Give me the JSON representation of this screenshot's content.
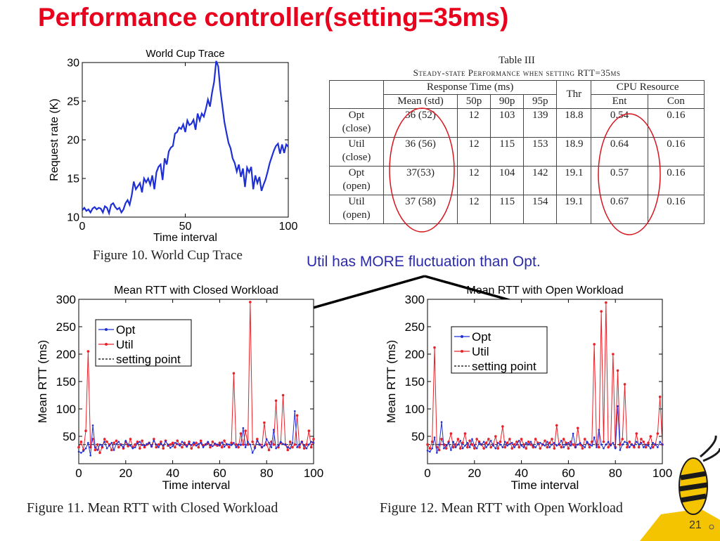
{
  "slide": {
    "title": "Performance controller(setting=35ms)",
    "note": "Util has MORE fluctuation than Opt.",
    "page_number": "21"
  },
  "captions": {
    "fig10": "Figure 10.   World Cup Trace",
    "fig11": "Figure 11.   Mean RTT with Closed Workload",
    "fig12": "Figure 12.   Mean RTT with Open Workload"
  },
  "table": {
    "title": "Table III",
    "subtitle": "Steady-state Performance when setting RTT=35ms",
    "h_response": "Response Time (ms)",
    "h_thr": "Thr",
    "h_cpu": "CPU Resource",
    "sub_headers": [
      "Mean (std)",
      "50p",
      "90p",
      "95p",
      "Ent",
      "Con"
    ],
    "rows": [
      {
        "label1": "Opt",
        "label2": "(close)",
        "mean": "36 (52)",
        "p50": "12",
        "p90": "103",
        "p95": "139",
        "thr": "18.8",
        "ent": "0.54",
        "con": "0.16"
      },
      {
        "label1": "Util",
        "label2": "(close)",
        "mean": "36 (56)",
        "p50": "12",
        "p90": "115",
        "p95": "153",
        "thr": "18.9",
        "ent": "0.64",
        "con": "0.16"
      },
      {
        "label1": "Opt",
        "label2": "(open)",
        "mean": "37(53)",
        "p50": "12",
        "p90": "104",
        "p95": "142",
        "thr": "19.1",
        "ent": "0.57",
        "con": "0.16"
      },
      {
        "label1": "Util",
        "label2": "(open)",
        "mean": "37 (58)",
        "p50": "12",
        "p90": "115",
        "p95": "154",
        "thr": "19.1",
        "ent": "0.67",
        "con": "0.16"
      }
    ]
  },
  "colors": {
    "title": "#e8001c",
    "opt": "#1f2fd6",
    "util": "#e8222a",
    "note": "#2a2aa8"
  },
  "chart_data": [
    {
      "id": "worldcup",
      "type": "line",
      "title": "World Cup Trace",
      "xlabel": "Time interval",
      "ylabel": "Request rate (K)",
      "xlim": [
        0,
        100
      ],
      "ylim": [
        10,
        30
      ],
      "xticks": [
        0,
        50,
        100
      ],
      "yticks": [
        10,
        15,
        20,
        25,
        30
      ],
      "x": [
        0,
        1,
        2,
        3,
        4,
        5,
        6,
        7,
        8,
        9,
        10,
        11,
        12,
        13,
        14,
        15,
        16,
        17,
        18,
        19,
        20,
        21,
        22,
        23,
        24,
        25,
        26,
        27,
        28,
        29,
        30,
        31,
        32,
        33,
        34,
        35,
        36,
        37,
        38,
        39,
        40,
        41,
        42,
        43,
        44,
        45,
        46,
        47,
        48,
        49,
        50,
        51,
        52,
        53,
        54,
        55,
        56,
        57,
        58,
        59,
        60,
        61,
        62,
        63,
        64,
        65,
        66,
        67,
        68,
        69,
        70,
        71,
        72,
        73,
        74,
        75,
        76,
        77,
        78,
        79,
        80,
        81,
        82,
        83,
        84,
        85,
        86,
        87,
        88,
        89,
        90,
        91,
        92,
        93,
        94,
        95,
        96,
        97,
        98,
        99,
        100
      ],
      "series": [
        {
          "name": "Request rate",
          "values": [
            10.9,
            11.2,
            10.8,
            11,
            10.6,
            11.1,
            11.3,
            11,
            11.2,
            11.1,
            10.6,
            11.4,
            11.2,
            10.5,
            11.6,
            11.8,
            11.3,
            11,
            11.2,
            10.6,
            11,
            11.8,
            12.2,
            11.6,
            12.8,
            14.6,
            13.6,
            14,
            14.4,
            13.2,
            15,
            14.5,
            15,
            14.2,
            15.4,
            13.6,
            15.8,
            16.5,
            16.8,
            14.8,
            17.6,
            16.8,
            18.5,
            19,
            19.2,
            20.8,
            21,
            21.6,
            21.4,
            22,
            21,
            22.5,
            21.9,
            22.1,
            22.6,
            21.3,
            23.4,
            22.5,
            23.4,
            23,
            24,
            25.2,
            24.3,
            26.1,
            27.5,
            30.2,
            29.5,
            26.5,
            24.4,
            22.3,
            20.9,
            19.6,
            18.9,
            17.6,
            17,
            15.9,
            16.8,
            15.2,
            16.3,
            13.9,
            16.4,
            15.8,
            16.5,
            13.6,
            15.4,
            14.4,
            15.2,
            13.4,
            14.2,
            14.9,
            15.9,
            17,
            17.8,
            18.6,
            19.2,
            19.5,
            18.2,
            19.4,
            18.3,
            19.4,
            19.1
          ]
        }
      ]
    },
    {
      "id": "closed",
      "type": "line",
      "title": "Mean RTT with Closed Workload",
      "xlabel": "Time interval",
      "ylabel": "Mean RTT (ms)",
      "xlim": [
        0,
        100
      ],
      "ylim": [
        0,
        300
      ],
      "xticks": [
        0,
        20,
        40,
        60,
        80,
        100
      ],
      "yticks": [
        50,
        100,
        150,
        200,
        250,
        300
      ],
      "legend": [
        "Opt",
        "Util",
        "setting point"
      ],
      "setting_point": 35,
      "x": [
        0,
        1,
        2,
        3,
        4,
        5,
        6,
        7,
        8,
        9,
        10,
        11,
        12,
        13,
        14,
        15,
        16,
        17,
        18,
        19,
        20,
        21,
        22,
        23,
        24,
        25,
        26,
        27,
        28,
        29,
        30,
        31,
        32,
        33,
        34,
        35,
        36,
        37,
        38,
        39,
        40,
        41,
        42,
        43,
        44,
        45,
        46,
        47,
        48,
        49,
        50,
        51,
        52,
        53,
        54,
        55,
        56,
        57,
        58,
        59,
        60,
        61,
        62,
        63,
        64,
        65,
        66,
        67,
        68,
        69,
        70,
        71,
        72,
        73,
        74,
        75,
        76,
        77,
        78,
        79,
        80,
        81,
        82,
        83,
        84,
        85,
        86,
        87,
        88,
        89,
        90,
        91,
        92,
        93,
        94,
        95,
        96,
        97,
        98,
        99,
        100
      ],
      "series": [
        {
          "name": "Opt",
          "values": [
            22,
            20,
            23,
            28,
            38,
            15,
            70,
            30,
            25,
            35,
            32,
            40,
            28,
            33,
            38,
            25,
            36,
            40,
            34,
            30,
            42,
            35,
            33,
            28,
            30,
            37,
            40,
            34,
            33,
            36,
            38,
            31,
            42,
            35,
            30,
            37,
            33,
            41,
            35,
            29,
            32,
            38,
            36,
            33,
            40,
            35,
            31,
            37,
            34,
            39,
            33,
            36,
            38,
            30,
            35,
            40,
            34,
            32,
            37,
            35,
            33,
            39,
            31,
            36,
            35,
            34,
            38,
            30,
            35,
            34,
            65,
            30,
            40,
            35,
            20,
            28,
            42,
            35,
            30,
            33,
            45,
            38,
            30,
            62,
            28,
            33,
            40,
            36,
            35,
            30,
            28,
            38,
            96,
            30,
            35,
            40,
            33,
            28,
            35,
            40,
            38
          ]
        },
        {
          "name": "Util",
          "values": [
            30,
            40,
            25,
            60,
            205,
            30,
            45,
            25,
            35,
            20,
            30,
            45,
            40,
            35,
            25,
            38,
            42,
            30,
            35,
            28,
            40,
            32,
            45,
            30,
            35,
            40,
            28,
            42,
            30,
            35,
            38,
            32,
            45,
            30,
            35,
            40,
            28,
            42,
            33,
            35,
            38,
            30,
            42,
            35,
            30,
            38,
            33,
            40,
            28,
            35,
            38,
            30,
            42,
            33,
            35,
            38,
            30,
            40,
            35,
            33,
            38,
            30,
            42,
            35,
            30,
            38,
            165,
            35,
            30,
            55,
            35,
            60,
            35,
            295,
            40,
            30,
            45,
            35,
            30,
            75,
            35,
            25,
            40,
            35,
            115,
            30,
            38,
            125,
            35,
            25,
            40,
            30,
            35,
            88,
            30,
            40,
            28,
            35,
            60,
            30,
            45
          ]
        }
      ]
    },
    {
      "id": "open",
      "type": "line",
      "title": "Mean RTT with Open Workload",
      "xlabel": "Time interval",
      "ylabel": "Mean RTT (ms)",
      "xlim": [
        0,
        100
      ],
      "ylim": [
        0,
        300
      ],
      "xticks": [
        0,
        20,
        40,
        60,
        80,
        100
      ],
      "yticks": [
        50,
        100,
        150,
        200,
        250,
        300
      ],
      "legend": [
        "Opt",
        "Util",
        "setting point"
      ],
      "setting_point": 35,
      "x": [
        0,
        1,
        2,
        3,
        4,
        5,
        6,
        7,
        8,
        9,
        10,
        11,
        12,
        13,
        14,
        15,
        16,
        17,
        18,
        19,
        20,
        21,
        22,
        23,
        24,
        25,
        26,
        27,
        28,
        29,
        30,
        31,
        32,
        33,
        34,
        35,
        36,
        37,
        38,
        39,
        40,
        41,
        42,
        43,
        44,
        45,
        46,
        47,
        48,
        49,
        50,
        51,
        52,
        53,
        54,
        55,
        56,
        57,
        58,
        59,
        60,
        61,
        62,
        63,
        64,
        65,
        66,
        67,
        68,
        69,
        70,
        71,
        72,
        73,
        74,
        75,
        76,
        77,
        78,
        79,
        80,
        81,
        82,
        83,
        84,
        85,
        86,
        87,
        88,
        89,
        90,
        91,
        92,
        93,
        94,
        95,
        96,
        97,
        98,
        99,
        100
      ],
      "series": [
        {
          "name": "Opt",
          "values": [
            24,
            22,
            28,
            48,
            20,
            35,
            76,
            28,
            33,
            38,
            25,
            40,
            30,
            35,
            42,
            28,
            33,
            38,
            30,
            45,
            33,
            28,
            38,
            35,
            40,
            30,
            35,
            42,
            33,
            28,
            38,
            35,
            30,
            40,
            33,
            36,
            38,
            30,
            35,
            42,
            33,
            30,
            38,
            35,
            40,
            33,
            30,
            36,
            38,
            35,
            33,
            40,
            30,
            35,
            38,
            33,
            36,
            42,
            30,
            35,
            38,
            33,
            55,
            30,
            35,
            38,
            33,
            30,
            40,
            35,
            33,
            48,
            30,
            62,
            35,
            28,
            35,
            40,
            33,
            38,
            28,
            105,
            25,
            35,
            40,
            38,
            30,
            35,
            33,
            40,
            35,
            38,
            30,
            35,
            33,
            28,
            38,
            35,
            30,
            40,
            35
          ]
        },
        {
          "name": "Util",
          "values": [
            35,
            28,
            40,
            212,
            30,
            25,
            45,
            35,
            28,
            40,
            55,
            30,
            35,
            45,
            28,
            38,
            55,
            30,
            42,
            35,
            28,
            45,
            40,
            35,
            28,
            38,
            45,
            30,
            35,
            50,
            28,
            40,
            68,
            30,
            38,
            45,
            28,
            35,
            40,
            30,
            45,
            35,
            28,
            40,
            35,
            30,
            45,
            38,
            28,
            35,
            42,
            30,
            38,
            45,
            28,
            70,
            35,
            30,
            45,
            38,
            28,
            40,
            35,
            30,
            65,
            35,
            28,
            45,
            38,
            30,
            40,
            218,
            35,
            30,
            278,
            40,
            294,
            30,
            35,
            200,
            30,
            170,
            35,
            45,
            145,
            30,
            40,
            35,
            30,
            55,
            30,
            45,
            40,
            30,
            38,
            50,
            30,
            35,
            55,
            122,
            35
          ]
        }
      ]
    }
  ]
}
